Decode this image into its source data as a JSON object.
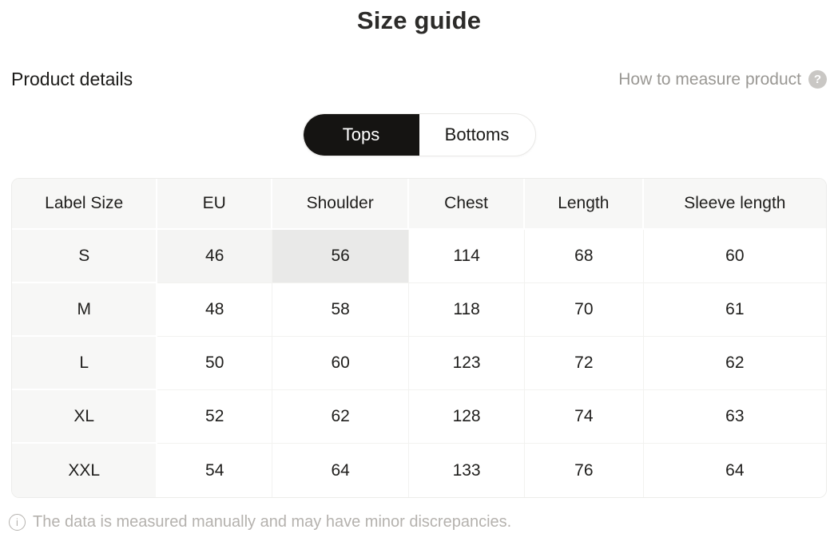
{
  "page_title": "Size guide",
  "header": {
    "section_title": "Product details",
    "help_link": "How to measure product",
    "help_icon_glyph": "?"
  },
  "tabs": [
    {
      "label": "Tops",
      "active": true
    },
    {
      "label": "Bottoms",
      "active": false
    }
  ],
  "size_table": {
    "columns": [
      "Label Size",
      "EU",
      "Shoulder",
      "Chest",
      "Length",
      "Sleeve length"
    ],
    "column_widths_pct": [
      17.9,
      14.1,
      16.8,
      14.2,
      14.6,
      22.4
    ],
    "rows": [
      {
        "label": "S",
        "values": [
          "46",
          "56",
          "114",
          "68",
          "60"
        ]
      },
      {
        "label": "M",
        "values": [
          "48",
          "58",
          "118",
          "70",
          "61"
        ]
      },
      {
        "label": "L",
        "values": [
          "50",
          "60",
          "123",
          "72",
          "62"
        ]
      },
      {
        "label": "XL",
        "values": [
          "52",
          "62",
          "128",
          "74",
          "63"
        ]
      },
      {
        "label": "XXL",
        "values": [
          "54",
          "64",
          "133",
          "76",
          "64"
        ]
      }
    ],
    "highlight": {
      "row": "S",
      "light_column": "EU",
      "dark_column": "Shoulder"
    }
  },
  "footer": {
    "note": "The data is measured manually and may have minor discrepancies.",
    "icon_glyph": "i"
  },
  "colors": {
    "active_tab_bg": "#151412",
    "table_header_bg": "#f7f7f6",
    "highlight_light": "#f4f4f3",
    "highlight_dark": "#e9e9e8",
    "muted_text": "#9a9894",
    "footer_text": "#b5b2ae"
  }
}
